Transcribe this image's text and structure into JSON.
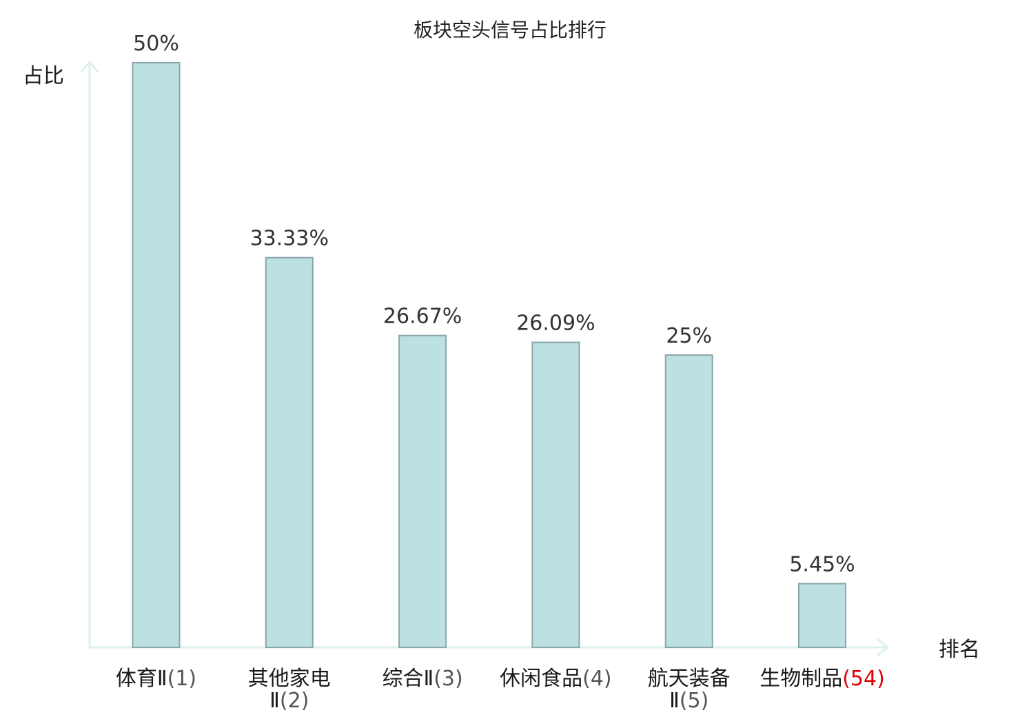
{
  "chart_data": {
    "type": "bar",
    "title": "板块空头信号占比排行",
    "ylabel": "占比",
    "xlabel": "排名",
    "ylim": [
      0,
      50
    ],
    "grid": false,
    "categories": [
      {
        "lines": [
          {
            "main": "体育Ⅱ",
            "suffix": "(1)"
          }
        ]
      },
      {
        "lines": [
          {
            "main": "其他家电",
            "suffix": ""
          },
          {
            "main": "Ⅱ",
            "suffix": "(2)"
          }
        ]
      },
      {
        "lines": [
          {
            "main": "综合Ⅱ",
            "suffix": "(3)"
          }
        ]
      },
      {
        "lines": [
          {
            "main": "休闲食品",
            "suffix": "(4)"
          }
        ]
      },
      {
        "lines": [
          {
            "main": "航天装备",
            "suffix": ""
          },
          {
            "main": "Ⅱ",
            "suffix": "(5)"
          }
        ]
      },
      {
        "lines": [
          {
            "main": "生物制品",
            "suffix": "(54)"
          }
        ],
        "highlight": true
      }
    ],
    "values": [
      50,
      33.33,
      26.67,
      26.09,
      25,
      5.45
    ],
    "value_labels": [
      "50%",
      "33.33%",
      "26.67%",
      "26.09%",
      "25%",
      "5.45%"
    ]
  },
  "colors": {
    "bar_fill": "#bde0e3",
    "bar_stroke": "#8aa6aa",
    "axis": "#dcf0ee",
    "highlight": "#e00000"
  }
}
